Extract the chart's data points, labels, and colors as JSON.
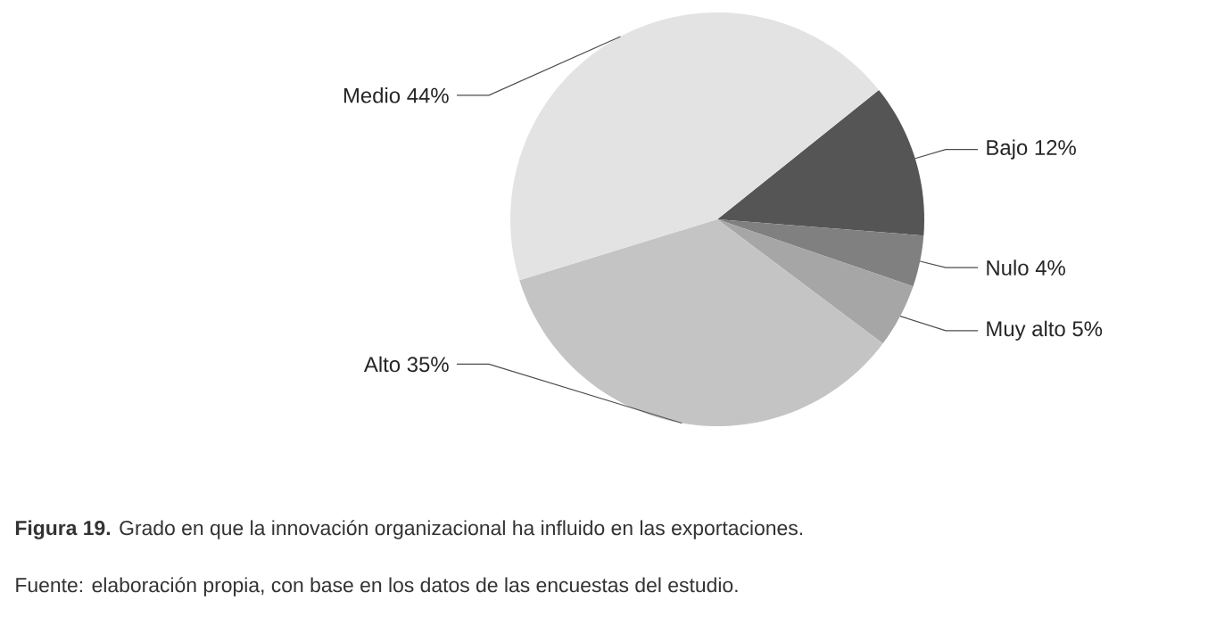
{
  "chart_data": {
    "type": "pie",
    "title": "**Figura 19.** Grado en que la innovación organizacional ha influido en las exportaciones.",
    "annotations": [
      "Fuente: elaboración propia, con base en los datos de las encuestas del estudio."
    ],
    "categories": [
      "Bajo",
      "Nulo",
      "Muy alto",
      "Alto",
      "Medio"
    ],
    "values": [
      12,
      4,
      5,
      35,
      44
    ],
    "value_labels": [
      "12%",
      "4%",
      "5%",
      "35%",
      "44%"
    ],
    "colors": [
      "#555555",
      "#808080",
      "#a6a6a6",
      "#c4c4c4",
      "#e3e3e3"
    ]
  }
}
